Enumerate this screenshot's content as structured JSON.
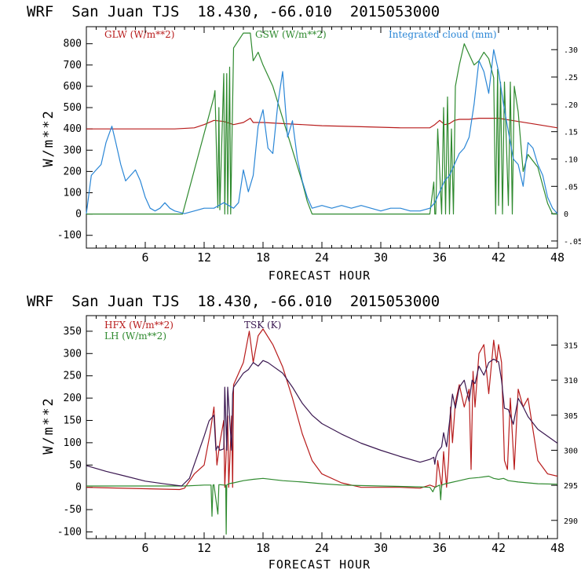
{
  "colors": {
    "red": "#b81c1c",
    "green": "#2f8a2f",
    "blue": "#2a86d6",
    "purple": "#3a1750"
  },
  "chart_data": [
    {
      "type": "line",
      "title": "WRF  San Juan TJS  18.430, -66.010  2015053000",
      "xlabel": "FORECAST HOUR",
      "ylabel": "W/m**2",
      "xlim": [
        0,
        48
      ],
      "ylim": [
        -160,
        880
      ],
      "ylim_right": [
        -0.063,
        0.342
      ],
      "xticks": [
        6,
        12,
        18,
        24,
        30,
        36,
        42,
        48
      ],
      "yticks": [
        -100,
        0,
        100,
        200,
        300,
        400,
        500,
        600,
        700,
        800
      ],
      "yticks_right": [
        -0.05,
        0,
        0.05,
        0.1,
        0.15,
        0.2,
        0.25,
        0.3
      ],
      "ytick_labels_right": [
        "-.05",
        "0",
        ".05",
        ".10",
        ".15",
        ".20",
        ".25",
        ".30"
      ],
      "grid": false,
      "series": [
        {
          "name": "GLW (W/m**2)",
          "color": "red",
          "axis": "left",
          "x": [
            0,
            6,
            9,
            11,
            12,
            13,
            14,
            15,
            16,
            16.7,
            17,
            18,
            20,
            22,
            24,
            28,
            32,
            34,
            35,
            35.5,
            36,
            36.5,
            37,
            37.5,
            38,
            39,
            40,
            41,
            42,
            44,
            46,
            48
          ],
          "y": [
            400,
            400,
            400,
            405,
            420,
            440,
            435,
            420,
            430,
            450,
            430,
            430,
            425,
            420,
            415,
            410,
            405,
            405,
            405,
            420,
            440,
            420,
            425,
            440,
            445,
            445,
            450,
            450,
            450,
            435,
            420,
            405
          ]
        },
        {
          "name": "GSW (W/m**2)",
          "color": "green",
          "axis": "left",
          "x": [
            0,
            9.8,
            13,
            13.1,
            13.4,
            13.5,
            13.6,
            14,
            14.1,
            14.3,
            14.4,
            14.6,
            14.7,
            15,
            16,
            16.7,
            17,
            17.5,
            18,
            19,
            20,
            21,
            22,
            22.5,
            23,
            34,
            35,
            35.4,
            35.5,
            35.6,
            35.8,
            36,
            36.2,
            36.4,
            36.6,
            36.8,
            37,
            37.2,
            37.4,
            37.6,
            38,
            38.5,
            39,
            39.5,
            40,
            40.5,
            41,
            41.5,
            41.7,
            41.9,
            42,
            42.2,
            42.4,
            42.6,
            43,
            43.2,
            43.4,
            43.6,
            44,
            44.5,
            45,
            46,
            47,
            47.5,
            48
          ],
          "y": [
            0,
            0,
            550,
            580,
            30,
            500,
            20,
            660,
            0,
            660,
            0,
            690,
            0,
            780,
            850,
            850,
            720,
            760,
            700,
            600,
            450,
            300,
            150,
            60,
            0,
            0,
            0,
            150,
            0,
            0,
            400,
            200,
            0,
            500,
            0,
            550,
            0,
            400,
            0,
            600,
            700,
            800,
            750,
            700,
            720,
            760,
            730,
            640,
            0,
            680,
            40,
            620,
            0,
            620,
            40,
            620,
            0,
            600,
            480,
            200,
            280,
            220,
            50,
            0,
            0
          ]
        },
        {
          "name": "Integrated cloud (mm)",
          "color": "blue",
          "axis": "right",
          "x": [
            0,
            0.5,
            1,
            1.5,
            2,
            2.6,
            3,
            3.5,
            4,
            4.5,
            5,
            5.5,
            6,
            6.5,
            7,
            7.5,
            8,
            8.5,
            9,
            10,
            11,
            12,
            13,
            13.5,
            14,
            14.5,
            15,
            15.5,
            16,
            16.5,
            17,
            17.5,
            18,
            18.5,
            19,
            19.5,
            20,
            20.5,
            21,
            21.5,
            22,
            22.5,
            23,
            24,
            25,
            26,
            27,
            28,
            29,
            30,
            31,
            32,
            33,
            34,
            35,
            35.5,
            36,
            36.5,
            37,
            37.5,
            38,
            38.5,
            39,
            39.5,
            40,
            40.5,
            41,
            41.5,
            42,
            42.5,
            43,
            43.5,
            44,
            44.5,
            45,
            45.5,
            46,
            46.5,
            47,
            47.5,
            48
          ],
          "y": [
            0,
            0.07,
            0.08,
            0.09,
            0.13,
            0.16,
            0.13,
            0.09,
            0.06,
            0.07,
            0.08,
            0.06,
            0.03,
            0.01,
            0.005,
            0.01,
            0.02,
            0.01,
            0.005,
            0,
            0.005,
            0.01,
            0.01,
            0.015,
            0.02,
            0.015,
            0.01,
            0.02,
            0.08,
            0.04,
            0.07,
            0.16,
            0.19,
            0.12,
            0.11,
            0.2,
            0.26,
            0.14,
            0.17,
            0.1,
            0.06,
            0.03,
            0.01,
            0.015,
            0.01,
            0.015,
            0.01,
            0.015,
            0.01,
            0.005,
            0.01,
            0.01,
            0.005,
            0.005,
            0.01,
            0.02,
            0.04,
            0.06,
            0.07,
            0.09,
            0.11,
            0.12,
            0.14,
            0.2,
            0.28,
            0.26,
            0.22,
            0.3,
            0.26,
            0.2,
            0.15,
            0.1,
            0.09,
            0.05,
            0.13,
            0.12,
            0.09,
            0.07,
            0.03,
            0.01,
            0
          ]
        }
      ]
    },
    {
      "type": "line",
      "title": "WRF  San Juan TJS  18.430, -66.010  2015053000",
      "xlabel": "FORECAST HOUR",
      "ylabel": "W/m**2",
      "xlim": [
        0,
        48
      ],
      "ylim": [
        -115,
        385
      ],
      "ylim_right": [
        287.4,
        319.2
      ],
      "xticks": [
        6,
        12,
        18,
        24,
        30,
        36,
        42,
        48
      ],
      "yticks": [
        -100,
        -50,
        0,
        50,
        100,
        150,
        200,
        250,
        300,
        350
      ],
      "yticks_right": [
        290,
        295,
        300,
        305,
        310,
        315
      ],
      "ytick_labels_right": [
        "290",
        "295",
        "300",
        "305",
        "310",
        "315"
      ],
      "grid": false,
      "series": [
        {
          "name": "HFX (W/m**2)",
          "color": "red",
          "axis": "left",
          "x": [
            0,
            9.5,
            10,
            11,
            12,
            12.6,
            13,
            13.3,
            13.6,
            14,
            14.1,
            14.4,
            14.5,
            14.8,
            14.9,
            15,
            16,
            16.6,
            17,
            17.5,
            18,
            19,
            20,
            21,
            22,
            23,
            24,
            26,
            28,
            30,
            32,
            34,
            35,
            35.6,
            35.8,
            36.2,
            36.4,
            36.7,
            36.9,
            37.1,
            37.3,
            37.6,
            38,
            38.5,
            39,
            39.2,
            39.4,
            39.6,
            40,
            40.5,
            41,
            41.5,
            41.8,
            42,
            42.3,
            42.6,
            42.9,
            43.2,
            43.6,
            44,
            44.5,
            45,
            46,
            47,
            48
          ],
          "y": [
            0,
            -5,
            -2,
            30,
            50,
            120,
            180,
            50,
            100,
            150,
            0,
            160,
            0,
            160,
            0,
            230,
            280,
            350,
            280,
            340,
            355,
            320,
            270,
            200,
            120,
            60,
            30,
            10,
            0,
            0,
            0,
            -2,
            5,
            0,
            60,
            0,
            80,
            0,
            60,
            180,
            100,
            190,
            230,
            180,
            220,
            40,
            260,
            180,
            300,
            320,
            210,
            330,
            280,
            320,
            280,
            60,
            40,
            200,
            40,
            220,
            180,
            200,
            60,
            30,
            25
          ]
        },
        {
          "name": "LH (W/m**2)",
          "color": "green",
          "axis": "left",
          "x": [
            0,
            10,
            12,
            12.7,
            12.8,
            12.9,
            13,
            13.4,
            13.5,
            13.6,
            14,
            14.2,
            14.25,
            14.3,
            14.5,
            15,
            16,
            17,
            18,
            20,
            22,
            24,
            26,
            30,
            34,
            35,
            35.3,
            35.5,
            36,
            36.1,
            36.2,
            36.6,
            37,
            38,
            39,
            40,
            41,
            41.5,
            42,
            42.5,
            43,
            44,
            45,
            46,
            48
          ],
          "y": [
            3,
            3,
            5,
            5,
            -65,
            5,
            6,
            -60,
            6,
            6,
            5,
            5,
            -105,
            5,
            8,
            10,
            15,
            18,
            20,
            15,
            12,
            8,
            5,
            3,
            1,
            0,
            -10,
            0,
            5,
            -28,
            5,
            8,
            10,
            15,
            20,
            22,
            25,
            20,
            18,
            20,
            15,
            12,
            10,
            8,
            7
          ]
        },
        {
          "name": "TSK (K)",
          "color": "purple",
          "axis": "right",
          "x": [
            0,
            2,
            4,
            6,
            8,
            9.7,
            10.5,
            11,
            12,
            12.5,
            13,
            13.2,
            13.4,
            13.6,
            14,
            14.1,
            14.3,
            14.4,
            14.8,
            14.9,
            15,
            15.5,
            16,
            16.5,
            17,
            17.5,
            18,
            18.5,
            19,
            20,
            21,
            22,
            23,
            24,
            26,
            28,
            30,
            32,
            34,
            35,
            35.4,
            35.5,
            35.6,
            35.8,
            36.2,
            36.4,
            36.7,
            37,
            37.3,
            37.6,
            38,
            38.5,
            39,
            39.3,
            39.6,
            40,
            40.5,
            41,
            41.5,
            42,
            42.3,
            42.6,
            43,
            43.5,
            44,
            44.5,
            45,
            46,
            47,
            48
          ],
          "y": [
            297.8,
            297,
            296.3,
            295.6,
            295.2,
            294.9,
            296,
            298,
            302,
            304.2,
            305,
            300,
            300.6,
            300,
            300.2,
            309,
            300,
            309,
            300,
            308,
            309,
            310,
            311,
            311.5,
            312.5,
            312,
            312.8,
            312.5,
            312,
            311,
            309,
            306.7,
            305,
            303.8,
            302.3,
            301,
            300,
            299.1,
            298.3,
            298.7,
            299,
            298,
            299,
            299.8,
            300.5,
            302.5,
            300.5,
            304,
            308,
            306,
            309,
            310,
            307,
            310,
            309.5,
            312,
            310.7,
            312.5,
            313,
            312.6,
            310,
            306,
            305.8,
            303.7,
            307.4,
            306.2,
            304.8,
            303,
            302,
            301
          ]
        }
      ]
    }
  ],
  "legend": {
    "glw": "GLW (W/m**2)",
    "gsw": "GSW (W/m**2)",
    "cloud": "Integrated cloud (mm)",
    "hfx": "HFX (W/m**2)",
    "lh": "LH (W/m**2)",
    "tsk": "TSK (K)"
  }
}
